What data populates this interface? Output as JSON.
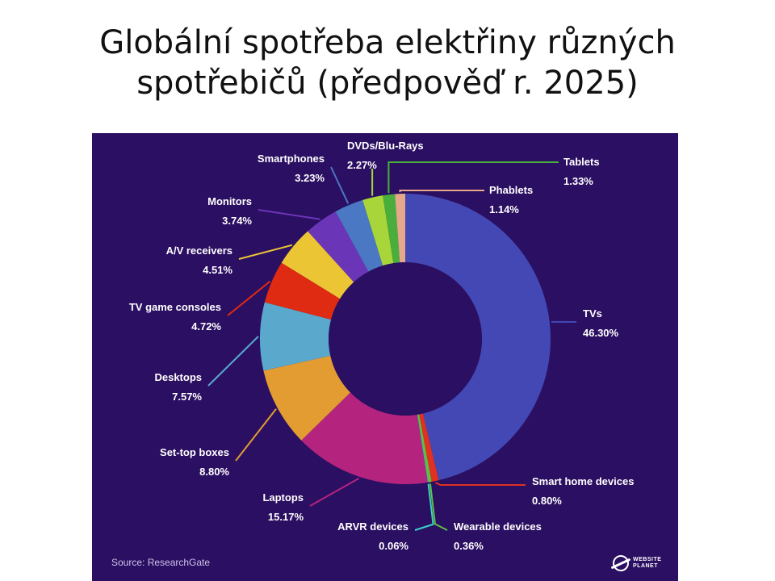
{
  "slide": {
    "title_line1": "Globální spotřeba elektřiny různých",
    "title_line2": "spotřebičů (předpověď r. 2025)"
  },
  "panel": {
    "background": "#2b0f62",
    "source": "Source: ResearchGate",
    "brand_line1": "WEBSITE",
    "brand_line2": "PLANET",
    "brand_icon": "planet-icon"
  },
  "chart_data": {
    "type": "pie",
    "donut": true,
    "title": "",
    "legend": "none",
    "unit": "%",
    "slices": [
      {
        "label": "TVs",
        "value": 46.3,
        "display": "46.30%",
        "color": "#4348b4"
      },
      {
        "label": "Smart home devices",
        "value": 0.8,
        "display": "0.80%",
        "color": "#e03020"
      },
      {
        "label": "Wearable devices",
        "value": 0.36,
        "display": "0.36%",
        "color": "#5fbf3f"
      },
      {
        "label": "ARVR devices",
        "value": 0.06,
        "display": "0.06%",
        "color": "#3ad0c8"
      },
      {
        "label": "Laptops",
        "value": 15.17,
        "display": "15.17%",
        "color": "#b4247e"
      },
      {
        "label": "Set-top boxes",
        "value": 8.8,
        "display": "8.80%",
        "color": "#e39c32"
      },
      {
        "label": "Desktops",
        "value": 7.57,
        "display": "7.57%",
        "color": "#5aa9cc"
      },
      {
        "label": "TV game consoles",
        "value": 4.72,
        "display": "4.72%",
        "color": "#de2b12"
      },
      {
        "label": "A/V receivers",
        "value": 4.51,
        "display": "4.51%",
        "color": "#ecc534"
      },
      {
        "label": "Monitors",
        "value": 3.74,
        "display": "3.74%",
        "color": "#6b35b8"
      },
      {
        "label": "Smartphones",
        "value": 3.23,
        "display": "3.23%",
        "color": "#4a78c2"
      },
      {
        "label": "DVDs/Blu-Rays",
        "value": 2.27,
        "display": "2.27%",
        "color": "#a8d63a"
      },
      {
        "label": "Tablets",
        "value": 1.33,
        "display": "1.33%",
        "color": "#49ae3b"
      },
      {
        "label": "Phablets",
        "value": 1.14,
        "display": "1.14%",
        "color": "#e6a88a"
      }
    ]
  }
}
